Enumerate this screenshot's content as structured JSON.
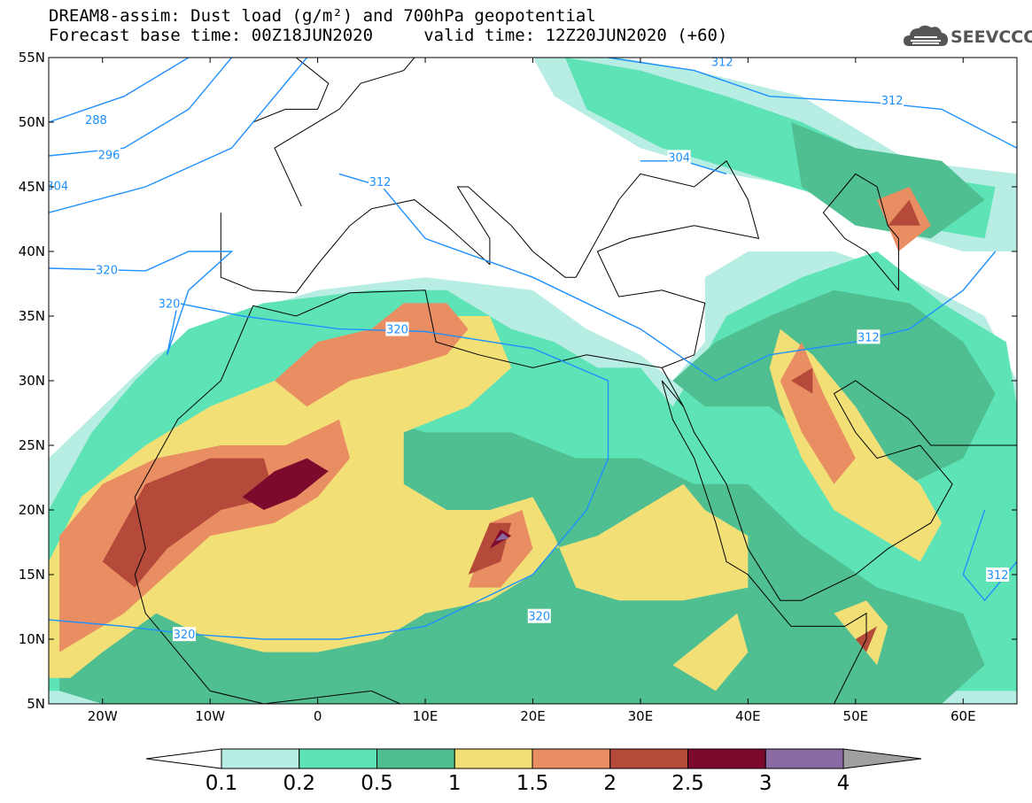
{
  "title": {
    "line1": "DREAM8-assim: Dust load (g/m²) and 700hPa geopotential",
    "line2": "Forecast base time: 00Z18JUN2020     valid time: 12Z20JUN2020 (+60)"
  },
  "logo": {
    "icon": "cloud-icon",
    "text": "SEEVCCC"
  },
  "colors": {
    "land": "#ffffff",
    "coast": "#000000",
    "contour": "#1e90ff"
  },
  "chart_data": {
    "type": "heatmap",
    "title": "DREAM8-assim: Dust load (g/m²) and 700hPa geopotential",
    "xlabel": "",
    "ylabel": "",
    "xlim": [
      -25,
      65
    ],
    "ylim": [
      5,
      55
    ],
    "x_ticks": [
      "20W",
      "10W",
      "0",
      "10E",
      "20E",
      "30E",
      "40E",
      "50E",
      "60E"
    ],
    "y_ticks": [
      "55N",
      "50N",
      "45N",
      "40N",
      "35N",
      "30N",
      "25N",
      "20N",
      "15N",
      "10N",
      "5N"
    ],
    "levels": [
      0.1,
      0.2,
      0.5,
      1,
      1.5,
      2,
      2.5,
      3,
      4
    ],
    "level_labels": [
      "0.1",
      "0.2",
      "0.5",
      "1",
      "1.5",
      "2",
      "2.5",
      "3",
      "4"
    ],
    "level_colors": [
      "#b8ede3",
      "#5ee3b7",
      "#4fbf92",
      "#f2e077",
      "#e98e62",
      "#b54a3a",
      "#7d0a2c",
      "#8b6aa3",
      "#a0a0a0"
    ],
    "contour_labels": [
      {
        "value": "288",
        "lon": -20.6,
        "lat": 50.2
      },
      {
        "value": "296",
        "lon": -19.4,
        "lat": 47.5
      },
      {
        "value": "304",
        "lon": -24.2,
        "lat": 45.1
      },
      {
        "value": "312",
        "lon": 5.8,
        "lat": 45.4
      },
      {
        "value": "320",
        "lon": -19.6,
        "lat": 38.6
      },
      {
        "value": "320",
        "lon": -13.8,
        "lat": 36.0
      },
      {
        "value": "320",
        "lon": 7.4,
        "lat": 34.0
      },
      {
        "value": "320",
        "lon": 20.6,
        "lat": 11.8
      },
      {
        "value": "320",
        "lon": -12.4,
        "lat": 10.4
      },
      {
        "value": "304",
        "lon": 33.6,
        "lat": 47.3
      },
      {
        "value": "312",
        "lon": 37.6,
        "lat": 54.7
      },
      {
        "value": "312",
        "lon": 53.4,
        "lat": 51.7
      },
      {
        "value": "312",
        "lon": 51.2,
        "lat": 33.4
      },
      {
        "value": "312",
        "lon": 63.2,
        "lat": 15.0
      }
    ]
  }
}
